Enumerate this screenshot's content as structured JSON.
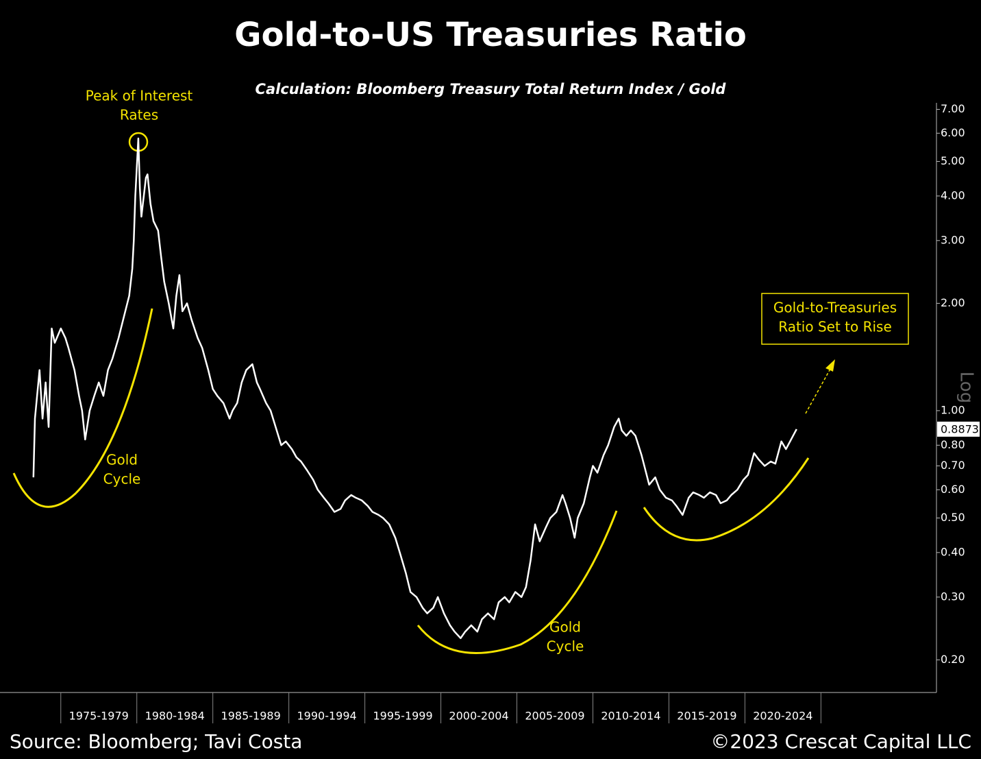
{
  "chart_data": {
    "type": "line",
    "title": "Gold-to-US Treasuries Ratio",
    "subtitle": "Calculation: Bloomberg Treasury Total Return Index / Gold",
    "scale_label": "Log",
    "log_scale": true,
    "color": "#ffffff",
    "accent_color": "#f5e400",
    "categories": [
      "1975-1979",
      "1980-1984",
      "1985-1989",
      "1990-1994",
      "1995-1999",
      "2000-2004",
      "2005-2009",
      "2010-2014",
      "2015-2019",
      "2020-2024"
    ],
    "category_edges": [
      1975,
      1980,
      1985,
      1990,
      1995,
      2000,
      2005,
      2010,
      2015,
      2020,
      2025
    ],
    "xlim": [
      1971,
      2032.6
    ],
    "ylim": [
      0.162,
      7.3
    ],
    "yticks": [
      {
        "value": 7,
        "label": "7.00"
      },
      {
        "value": 6,
        "label": "6.00"
      },
      {
        "value": 5,
        "label": "5.00"
      },
      {
        "value": 4,
        "label": "4.00"
      },
      {
        "value": 3,
        "label": "3.00"
      },
      {
        "value": 2,
        "label": "2.00"
      },
      {
        "value": 1,
        "label": "1.00"
      },
      {
        "value": 0.8,
        "label": "0.80"
      },
      {
        "value": 0.7,
        "label": "0.70"
      },
      {
        "value": 0.6,
        "label": "0.60"
      },
      {
        "value": 0.5,
        "label": "0.50"
      },
      {
        "value": 0.4,
        "label": "0.40"
      },
      {
        "value": 0.3,
        "label": "0.30"
      },
      {
        "value": 0.2,
        "label": "0.20"
      }
    ],
    "x": [
      1973.2,
      1973.3,
      1973.6,
      1973.8,
      1974.0,
      1974.2,
      1974.4,
      1974.6,
      1975.0,
      1975.3,
      1975.5,
      1975.9,
      1976.2,
      1976.4,
      1976.6,
      1976.9,
      1977.2,
      1977.5,
      1977.8,
      1978.1,
      1978.4,
      1978.8,
      1979.1,
      1979.5,
      1979.7,
      1979.8,
      1979.9,
      1980.1,
      1980.2,
      1980.3,
      1980.6,
      1980.7,
      1980.9,
      1981.1,
      1981.4,
      1981.6,
      1981.8,
      1982.1,
      1982.4,
      1982.6,
      1982.8,
      1983.0,
      1983.3,
      1983.6,
      1984.0,
      1984.3,
      1984.7,
      1985.0,
      1985.3,
      1985.7,
      1986.1,
      1986.3,
      1986.6,
      1986.9,
      1987.2,
      1987.6,
      1987.9,
      1988.1,
      1988.5,
      1988.8,
      1989.2,
      1989.5,
      1989.8,
      1990.2,
      1990.5,
      1990.8,
      1991.2,
      1991.6,
      1991.9,
      1992.3,
      1992.6,
      1993.0,
      1993.4,
      1993.7,
      1994.1,
      1994.4,
      1994.8,
      1995.2,
      1995.5,
      1995.9,
      1996.2,
      1996.6,
      1997.0,
      1997.3,
      1997.7,
      1998.0,
      1998.4,
      1998.8,
      1999.1,
      1999.5,
      1999.8,
      2000.2,
      2000.6,
      2000.9,
      2001.3,
      2001.6,
      2002.0,
      2002.4,
      2002.7,
      2003.1,
      2003.5,
      2003.8,
      2004.2,
      2004.5,
      2004.9,
      2005.3,
      2005.6,
      2005.9,
      2006.2,
      2006.5,
      2006.9,
      2007.2,
      2007.6,
      2008.0,
      2008.2,
      2008.5,
      2008.8,
      2009.0,
      2009.4,
      2009.8,
      2010.0,
      2010.3,
      2010.7,
      2011.0,
      2011.4,
      2011.7,
      2011.9,
      2012.2,
      2012.5,
      2012.8,
      2013.2,
      2013.5,
      2013.7,
      2014.1,
      2014.4,
      2014.8,
      2015.2,
      2015.5,
      2015.9,
      2016.3,
      2016.6,
      2017.0,
      2017.3,
      2017.7,
      2018.1,
      2018.4,
      2018.8,
      2019.1,
      2019.5,
      2019.9,
      2020.2,
      2020.6,
      2020.9,
      2021.3,
      2021.7,
      2022.0,
      2022.4,
      2022.7,
      2023.1,
      2023.4
    ],
    "values": [
      0.65,
      0.95,
      1.3,
      0.95,
      1.2,
      0.9,
      1.7,
      1.55,
      1.7,
      1.6,
      1.5,
      1.3,
      1.1,
      1.0,
      0.83,
      1.0,
      1.1,
      1.2,
      1.1,
      1.3,
      1.4,
      1.6,
      1.8,
      2.1,
      2.5,
      3.0,
      4.0,
      5.8,
      4.2,
      3.5,
      4.5,
      4.6,
      3.8,
      3.4,
      3.2,
      2.7,
      2.3,
      2.0,
      1.7,
      2.1,
      2.4,
      1.9,
      2.0,
      1.8,
      1.6,
      1.5,
      1.3,
      1.15,
      1.1,
      1.05,
      0.95,
      1.0,
      1.05,
      1.2,
      1.3,
      1.35,
      1.2,
      1.15,
      1.05,
      1.0,
      0.88,
      0.8,
      0.82,
      0.78,
      0.74,
      0.72,
      0.68,
      0.64,
      0.6,
      0.57,
      0.55,
      0.52,
      0.53,
      0.56,
      0.58,
      0.57,
      0.56,
      0.54,
      0.52,
      0.51,
      0.5,
      0.48,
      0.44,
      0.4,
      0.35,
      0.31,
      0.3,
      0.28,
      0.27,
      0.28,
      0.3,
      0.27,
      0.25,
      0.24,
      0.23,
      0.24,
      0.25,
      0.24,
      0.26,
      0.27,
      0.26,
      0.29,
      0.3,
      0.29,
      0.31,
      0.3,
      0.32,
      0.38,
      0.48,
      0.43,
      0.47,
      0.5,
      0.52,
      0.58,
      0.55,
      0.5,
      0.44,
      0.5,
      0.55,
      0.65,
      0.7,
      0.67,
      0.75,
      0.8,
      0.9,
      0.95,
      0.88,
      0.85,
      0.88,
      0.85,
      0.75,
      0.67,
      0.62,
      0.65,
      0.6,
      0.57,
      0.56,
      0.54,
      0.51,
      0.57,
      0.59,
      0.58,
      0.57,
      0.59,
      0.58,
      0.55,
      0.56,
      0.58,
      0.6,
      0.64,
      0.66,
      0.76,
      0.73,
      0.7,
      0.72,
      0.71,
      0.82,
      0.78,
      0.84,
      0.8873
    ],
    "annotations": [
      {
        "name": "peak-annotation",
        "lines": [
          "Peak of Interest",
          "Rates"
        ]
      },
      {
        "name": "gold-cycle-1",
        "lines": [
          "Gold",
          "Cycle"
        ]
      },
      {
        "name": "gold-cycle-2",
        "lines": [
          "Gold",
          "Cycle"
        ]
      },
      {
        "name": "outlook-box",
        "lines": [
          "Gold-to-Treasuries",
          "Ratio Set to Rise"
        ]
      }
    ],
    "source": "Source: Bloomberg; Tavi Costa",
    "copyright": "©2023 Crescat Capital LLC"
  }
}
